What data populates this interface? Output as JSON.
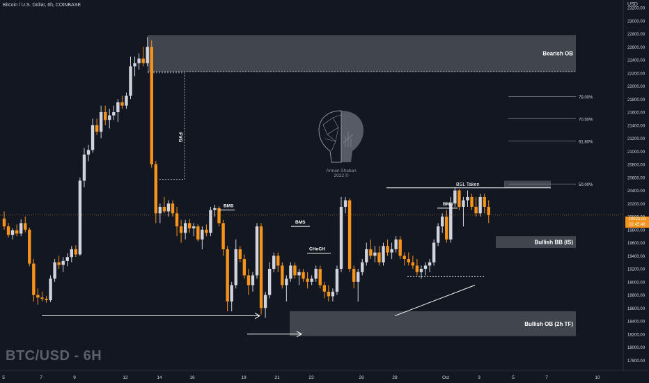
{
  "header": {
    "title": "Bitcoin / U.S. Dollar, 6h, COINBASE"
  },
  "price_axis": {
    "currency": "USD",
    "ticks": [
      "23200.00",
      "23000.00",
      "22800.00",
      "22600.00",
      "22400.00",
      "22200.00",
      "22000.00",
      "21800.00",
      "21600.00",
      "21400.00",
      "21200.00",
      "21000.00",
      "20800.00",
      "20600.00",
      "20400.00",
      "20200.00",
      "20000.00",
      "19800.00",
      "19600.00",
      "19400.00",
      "19200.00",
      "19000.00",
      "18800.00",
      "18600.00",
      "18400.00",
      "18200.00",
      "18000.00",
      "17800.00"
    ],
    "current_price": "20023.03",
    "countdown": "02:45:48"
  },
  "time_axis": {
    "ticks": [
      "5",
      "7",
      "9",
      "12",
      "14",
      "16",
      "19",
      "21",
      "23",
      "26",
      "28",
      "Oct",
      "3",
      "5",
      "7",
      "10"
    ]
  },
  "watermark": "BTC/USD - 6H",
  "logo": {
    "name": "Arman Shaban",
    "year": "2022 ©"
  },
  "colors": {
    "background": "#131722",
    "up": "#d1d4dc",
    "down": "#f7931a",
    "zone": "#4a4d56",
    "text": "#d1d4dc",
    "line": "#ffffff"
  },
  "chart_data": {
    "type": "candlestick",
    "title": "Bitcoin / U.S. Dollar, 6h, COINBASE",
    "ylim": [
      17700,
      23350
    ],
    "candles": [
      {
        "o": 19970,
        "h": 20080,
        "l": 19800,
        "c": 19850
      },
      {
        "o": 19850,
        "h": 19900,
        "l": 19680,
        "c": 19720
      },
      {
        "o": 19720,
        "h": 19820,
        "l": 19650,
        "c": 19790
      },
      {
        "o": 19790,
        "h": 19880,
        "l": 19700,
        "c": 19740
      },
      {
        "o": 19740,
        "h": 19960,
        "l": 19700,
        "c": 19900
      },
      {
        "o": 19900,
        "h": 20000,
        "l": 19760,
        "c": 19800
      },
      {
        "o": 19800,
        "h": 19830,
        "l": 19240,
        "c": 19280
      },
      {
        "o": 19280,
        "h": 19350,
        "l": 18700,
        "c": 18800
      },
      {
        "o": 18800,
        "h": 18900,
        "l": 18650,
        "c": 18760
      },
      {
        "o": 18760,
        "h": 18850,
        "l": 18700,
        "c": 18740
      },
      {
        "o": 18740,
        "h": 18780,
        "l": 18680,
        "c": 18720
      },
      {
        "o": 18720,
        "h": 19100,
        "l": 18690,
        "c": 19050
      },
      {
        "o": 19050,
        "h": 19350,
        "l": 19000,
        "c": 19300
      },
      {
        "o": 19300,
        "h": 19400,
        "l": 19200,
        "c": 19260
      },
      {
        "o": 19260,
        "h": 19380,
        "l": 19150,
        "c": 19320
      },
      {
        "o": 19320,
        "h": 19440,
        "l": 19240,
        "c": 19380
      },
      {
        "o": 19380,
        "h": 19550,
        "l": 19300,
        "c": 19500
      },
      {
        "o": 19500,
        "h": 19560,
        "l": 19380,
        "c": 19420
      },
      {
        "o": 19420,
        "h": 20600,
        "l": 19400,
        "c": 20550
      },
      {
        "o": 20550,
        "h": 21050,
        "l": 20450,
        "c": 20950
      },
      {
        "o": 20950,
        "h": 21100,
        "l": 20850,
        "c": 21020
      },
      {
        "o": 21020,
        "h": 21500,
        "l": 20980,
        "c": 21400
      },
      {
        "o": 21400,
        "h": 21500,
        "l": 21250,
        "c": 21300
      },
      {
        "o": 21300,
        "h": 21700,
        "l": 21200,
        "c": 21600
      },
      {
        "o": 21600,
        "h": 21700,
        "l": 21400,
        "c": 21480
      },
      {
        "o": 21480,
        "h": 21650,
        "l": 21350,
        "c": 21550
      },
      {
        "o": 21550,
        "h": 21700,
        "l": 21480,
        "c": 21600
      },
      {
        "o": 21600,
        "h": 21800,
        "l": 21450,
        "c": 21750
      },
      {
        "o": 21750,
        "h": 21850,
        "l": 21650,
        "c": 21700
      },
      {
        "o": 21700,
        "h": 21900,
        "l": 21650,
        "c": 21850
      },
      {
        "o": 21850,
        "h": 22450,
        "l": 21800,
        "c": 22300
      },
      {
        "o": 22300,
        "h": 22450,
        "l": 22150,
        "c": 22350
      },
      {
        "o": 22350,
        "h": 22500,
        "l": 22250,
        "c": 22420
      },
      {
        "o": 22420,
        "h": 22600,
        "l": 22300,
        "c": 22350
      },
      {
        "o": 22350,
        "h": 22750,
        "l": 22300,
        "c": 22600
      },
      {
        "o": 22600,
        "h": 22700,
        "l": 20750,
        "c": 20800
      },
      {
        "o": 20800,
        "h": 20850,
        "l": 19900,
        "c": 20050
      },
      {
        "o": 20050,
        "h": 20200,
        "l": 19900,
        "c": 20150
      },
      {
        "o": 20150,
        "h": 20300,
        "l": 20050,
        "c": 20080
      },
      {
        "o": 20080,
        "h": 20250,
        "l": 20000,
        "c": 20200
      },
      {
        "o": 20200,
        "h": 20250,
        "l": 20000,
        "c": 20050
      },
      {
        "o": 20050,
        "h": 20150,
        "l": 19700,
        "c": 19850
      },
      {
        "o": 19850,
        "h": 19950,
        "l": 19600,
        "c": 19750
      },
      {
        "o": 19750,
        "h": 19950,
        "l": 19650,
        "c": 19900
      },
      {
        "o": 19900,
        "h": 19960,
        "l": 19750,
        "c": 19820
      },
      {
        "o": 19820,
        "h": 19900,
        "l": 19700,
        "c": 19850
      },
      {
        "o": 19850,
        "h": 19880,
        "l": 19620,
        "c": 19650
      },
      {
        "o": 19650,
        "h": 19850,
        "l": 19500,
        "c": 19800
      },
      {
        "o": 19800,
        "h": 19880,
        "l": 19700,
        "c": 19750
      },
      {
        "o": 19750,
        "h": 20150,
        "l": 19700,
        "c": 20100
      },
      {
        "o": 20100,
        "h": 20180,
        "l": 20000,
        "c": 20130
      },
      {
        "o": 20130,
        "h": 20160,
        "l": 19850,
        "c": 19900
      },
      {
        "o": 19900,
        "h": 19950,
        "l": 19400,
        "c": 19500
      },
      {
        "o": 19500,
        "h": 19550,
        "l": 18550,
        "c": 18700
      },
      {
        "o": 18700,
        "h": 19000,
        "l": 18550,
        "c": 18950
      },
      {
        "o": 18950,
        "h": 19650,
        "l": 18900,
        "c": 19500
      },
      {
        "o": 19500,
        "h": 19550,
        "l": 19300,
        "c": 19350
      },
      {
        "o": 19350,
        "h": 19420,
        "l": 19050,
        "c": 19100
      },
      {
        "o": 19100,
        "h": 19200,
        "l": 18800,
        "c": 18950
      },
      {
        "o": 18950,
        "h": 19150,
        "l": 18850,
        "c": 19100
      },
      {
        "o": 19100,
        "h": 19900,
        "l": 19050,
        "c": 19850
      },
      {
        "o": 19850,
        "h": 19900,
        "l": 18500,
        "c": 18600
      },
      {
        "o": 18600,
        "h": 18850,
        "l": 18450,
        "c": 18800
      },
      {
        "o": 18800,
        "h": 19300,
        "l": 18750,
        "c": 19200
      },
      {
        "o": 19200,
        "h": 19450,
        "l": 19150,
        "c": 19400
      },
      {
        "o": 19400,
        "h": 19450,
        "l": 19150,
        "c": 19250
      },
      {
        "o": 19250,
        "h": 19300,
        "l": 18900,
        "c": 18950
      },
      {
        "o": 18950,
        "h": 19100,
        "l": 18700,
        "c": 19050
      },
      {
        "o": 19050,
        "h": 19300,
        "l": 19000,
        "c": 19250
      },
      {
        "o": 19250,
        "h": 19300,
        "l": 19050,
        "c": 19100
      },
      {
        "o": 19100,
        "h": 19200,
        "l": 18950,
        "c": 19150
      },
      {
        "o": 19150,
        "h": 19200,
        "l": 19000,
        "c": 19050
      },
      {
        "o": 19050,
        "h": 19150,
        "l": 18900,
        "c": 19000
      },
      {
        "o": 19000,
        "h": 19100,
        "l": 18950,
        "c": 19050
      },
      {
        "o": 19050,
        "h": 19250,
        "l": 19000,
        "c": 19200
      },
      {
        "o": 19200,
        "h": 19250,
        "l": 18900,
        "c": 18950
      },
      {
        "o": 18950,
        "h": 19000,
        "l": 18750,
        "c": 18850
      },
      {
        "o": 18850,
        "h": 18950,
        "l": 18700,
        "c": 18780
      },
      {
        "o": 18780,
        "h": 18900,
        "l": 18700,
        "c": 18850
      },
      {
        "o": 18850,
        "h": 19250,
        "l": 18800,
        "c": 19200
      },
      {
        "o": 19200,
        "h": 20300,
        "l": 19150,
        "c": 20150
      },
      {
        "o": 20150,
        "h": 20300,
        "l": 20050,
        "c": 20250
      },
      {
        "o": 20250,
        "h": 20280,
        "l": 19150,
        "c": 19200
      },
      {
        "o": 19200,
        "h": 19250,
        "l": 18900,
        "c": 19000
      },
      {
        "o": 19000,
        "h": 19200,
        "l": 18700,
        "c": 19150
      },
      {
        "o": 19150,
        "h": 19350,
        "l": 19100,
        "c": 19300
      },
      {
        "o": 19300,
        "h": 19600,
        "l": 19250,
        "c": 19500
      },
      {
        "o": 19500,
        "h": 19650,
        "l": 19350,
        "c": 19400
      },
      {
        "o": 19400,
        "h": 19550,
        "l": 19300,
        "c": 19450
      },
      {
        "o": 19450,
        "h": 19550,
        "l": 19250,
        "c": 19300
      },
      {
        "o": 19300,
        "h": 19600,
        "l": 19250,
        "c": 19550
      },
      {
        "o": 19550,
        "h": 19650,
        "l": 19400,
        "c": 19450
      },
      {
        "o": 19450,
        "h": 19600,
        "l": 19350,
        "c": 19500
      },
      {
        "o": 19500,
        "h": 19700,
        "l": 19450,
        "c": 19650
      },
      {
        "o": 19650,
        "h": 19700,
        "l": 19350,
        "c": 19400
      },
      {
        "o": 19400,
        "h": 19450,
        "l": 19250,
        "c": 19350
      },
      {
        "o": 19350,
        "h": 19450,
        "l": 19250,
        "c": 19300
      },
      {
        "o": 19300,
        "h": 19400,
        "l": 19200,
        "c": 19250
      },
      {
        "o": 19250,
        "h": 19350,
        "l": 19100,
        "c": 19150
      },
      {
        "o": 19150,
        "h": 19250,
        "l": 19050,
        "c": 19200
      },
      {
        "o": 19200,
        "h": 19300,
        "l": 19100,
        "c": 19250
      },
      {
        "o": 19250,
        "h": 19350,
        "l": 19150,
        "c": 19300
      },
      {
        "o": 19300,
        "h": 19650,
        "l": 19250,
        "c": 19600
      },
      {
        "o": 19600,
        "h": 19900,
        "l": 19550,
        "c": 19850
      },
      {
        "o": 19850,
        "h": 20050,
        "l": 19750,
        "c": 20000
      },
      {
        "o": 20000,
        "h": 20100,
        "l": 19600,
        "c": 19650
      },
      {
        "o": 19650,
        "h": 20300,
        "l": 19600,
        "c": 20200
      },
      {
        "o": 20200,
        "h": 20450,
        "l": 20150,
        "c": 20400
      },
      {
        "o": 20400,
        "h": 20420,
        "l": 20100,
        "c": 20150
      },
      {
        "o": 20150,
        "h": 20300,
        "l": 19850,
        "c": 20250
      },
      {
        "o": 20250,
        "h": 20400,
        "l": 20150,
        "c": 20300
      },
      {
        "o": 20300,
        "h": 20350,
        "l": 20100,
        "c": 20150
      },
      {
        "o": 20150,
        "h": 20300,
        "l": 20000,
        "c": 20050
      },
      {
        "o": 20050,
        "h": 20350,
        "l": 20000,
        "c": 20300
      },
      {
        "o": 20300,
        "h": 20350,
        "l": 20050,
        "c": 20150
      },
      {
        "o": 20150,
        "h": 20250,
        "l": 19900,
        "c": 20023
      }
    ],
    "zones": [
      {
        "label": "Bearish OB",
        "top": 22780,
        "bottom": 22220
      },
      {
        "label": "Bullish BB (IS)",
        "top": 19700,
        "bottom": 19520
      },
      {
        "label": "Bullish OB (2h TF)",
        "top": 18550,
        "bottom": 18170
      }
    ],
    "fib_levels": [
      {
        "label": "79.00%",
        "price": 21840
      },
      {
        "label": "70.50%",
        "price": 21500
      },
      {
        "label": "61.80%",
        "price": 21160
      },
      {
        "label": "50.00%",
        "price": 20500
      }
    ],
    "annotations": [
      "BMS",
      "BMS",
      "CHoCH",
      "BMS",
      "BSL Taken",
      "FVG"
    ],
    "xlabel": "",
    "ylabel": ""
  }
}
